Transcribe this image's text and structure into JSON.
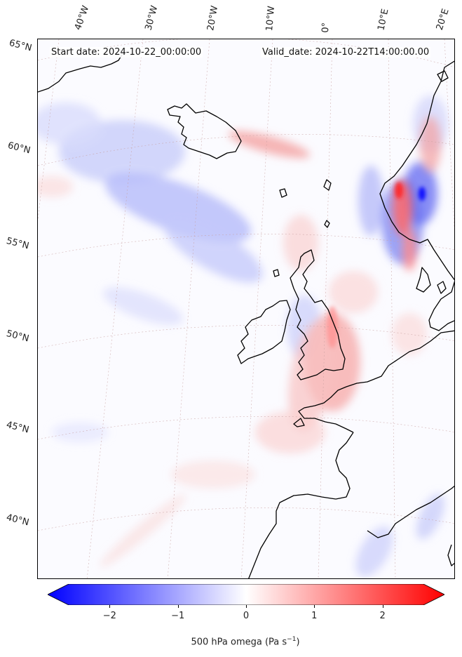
{
  "header": {
    "start_date": "Start date: 2024-10-22_00:00:00",
    "valid_date": "Valid_date: 2024-10-22T14:00:00.00"
  },
  "map": {
    "projection": "conic",
    "field": "500 hPa omega",
    "longitude_labels": [
      "40°W",
      "30°W",
      "20°W",
      "10°W",
      "0°",
      "10°E",
      "20°E"
    ],
    "latitude_labels": [
      "65°N",
      "60°N",
      "55°N",
      "50°N",
      "45°N",
      "40°N"
    ],
    "colors": {
      "negative": "#0000ff",
      "neutral": "#ffffff",
      "positive": "#ff0000",
      "coastline": "#000000",
      "gridline": "#c8a0a0"
    }
  },
  "colorbar": {
    "ticks": [
      "−2",
      "−1",
      "0",
      "1",
      "2"
    ],
    "tick_values": [
      -2,
      -1,
      0,
      1,
      2
    ],
    "range": [
      -2.6,
      2.6
    ],
    "extend": "both",
    "label_main": "500 hPa omega (Pa s",
    "label_exp": "−1",
    "label_end": ")"
  }
}
